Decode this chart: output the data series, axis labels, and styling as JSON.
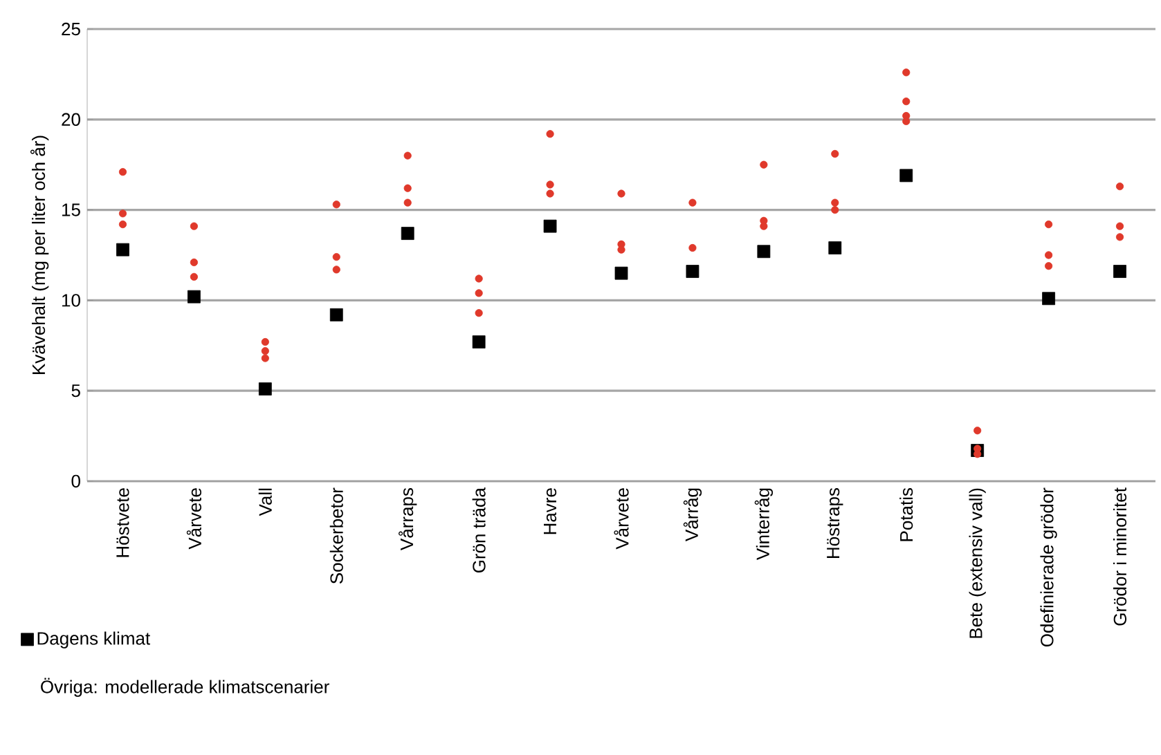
{
  "chart_data": {
    "type": "scatter",
    "ylabel": "Kvävehalt (mg per liter och år)",
    "categories": [
      "Höstvete",
      "Vårvete",
      "Vall",
      "Sockerbetor",
      "Vårraps",
      "Grön träda",
      "Havre",
      "Vårvete",
      "Vårråg",
      "Vinterråg",
      "Höstraps",
      "Potatis",
      "Bete (extensiv vall)",
      "Odefinierade grödor",
      "Grödor i minoritet"
    ],
    "series": [
      {
        "name": "Dagens klimat",
        "color": "#000000",
        "marker": "square",
        "values": [
          12.8,
          10.2,
          5.1,
          9.2,
          13.7,
          7.7,
          14.1,
          11.5,
          11.6,
          12.7,
          12.9,
          16.9,
          1.7,
          10.1,
          11.6
        ]
      },
      {
        "color": "#e0392b",
        "marker": "circle",
        "values": [
          17.1,
          14.1,
          7.7,
          15.3,
          18.0,
          11.2,
          19.2,
          15.9,
          15.4,
          17.5,
          18.1,
          22.6,
          2.8,
          14.2,
          16.3
        ]
      },
      {
        "color": "#e0392b",
        "marker": "circle",
        "values": [
          14.8,
          12.1,
          7.2,
          12.4,
          16.2,
          10.4,
          16.4,
          13.1,
          12.9,
          14.4,
          15.4,
          21.0,
          1.8,
          12.5,
          14.1
        ]
      },
      {
        "color": "#e0392b",
        "marker": "circle",
        "values": [
          14.2,
          11.3,
          6.8,
          11.7,
          15.4,
          9.3,
          15.9,
          12.8,
          null,
          14.1,
          15.0,
          20.2,
          1.5,
          11.9,
          13.5
        ]
      },
      {
        "color": "#e0392b",
        "marker": "circle",
        "values": [
          null,
          null,
          null,
          null,
          null,
          null,
          null,
          null,
          null,
          null,
          null,
          19.9,
          null,
          null,
          null
        ]
      }
    ],
    "ylim": [
      0,
      25
    ],
    "yticks": [
      0,
      5,
      10,
      15,
      20,
      25
    ],
    "grid": "y",
    "legend": "bottom left",
    "annotations": [
      "Övriga: modellerade klimatscenarier"
    ]
  }
}
